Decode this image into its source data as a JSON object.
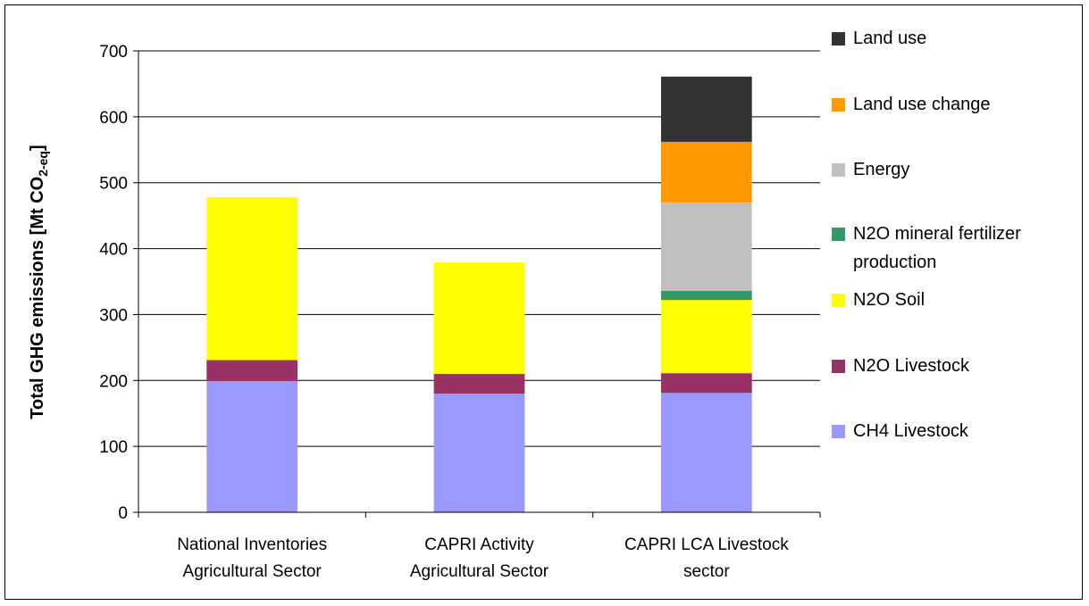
{
  "chart_data": {
    "type": "stacked_bar",
    "y_label": {
      "main": "Total GHG emissions [Mt CO",
      "sub": "2-eq",
      "end": "]"
    },
    "categories": [
      "National Inventories Agricultural Sector",
      "CAPRI Activity Agricultural Sector",
      "CAPRI LCA Livestock sector"
    ],
    "series": [
      {
        "name": "CH4 Livestock",
        "color": "#9999ff",
        "values": [
          199,
          180,
          181
        ]
      },
      {
        "name": "N2O Livestock",
        "color": "#993366",
        "values": [
          32,
          30,
          30
        ]
      },
      {
        "name": "N2O Soil",
        "color": "#ffff00",
        "values": [
          247,
          169,
          111
        ]
      },
      {
        "name": "N2O mineral fertilizer production",
        "color": "#339966",
        "values": [
          0,
          0,
          14
        ]
      },
      {
        "name": "Energy",
        "color": "#c0c0c0",
        "values": [
          0,
          0,
          134
        ]
      },
      {
        "name": "Land use change",
        "color": "#ff9900",
        "values": [
          0,
          0,
          92
        ]
      },
      {
        "name": "Land use",
        "color": "#333333",
        "values": [
          0,
          0,
          99
        ]
      }
    ],
    "ylim": [
      0,
      700
    ],
    "yticks": [
      0,
      100,
      200,
      300,
      400,
      500,
      600,
      700
    ],
    "grid": true,
    "legend": "right"
  }
}
